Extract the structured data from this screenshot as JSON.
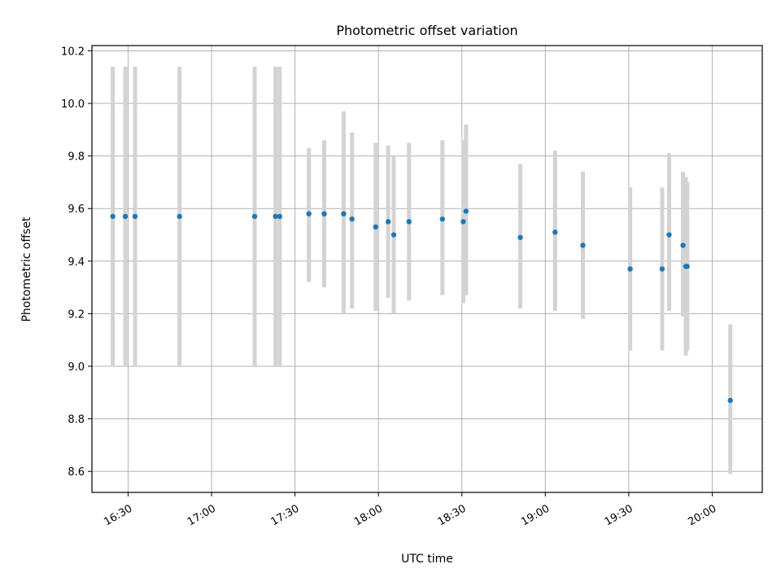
{
  "chart_data": {
    "type": "scatter",
    "title": "Photometric offset variation",
    "xlabel": "UTC time",
    "ylabel": "Photometric offset",
    "xlim": [
      "16:17",
      "20:18"
    ],
    "ylim": [
      8.52,
      10.22
    ],
    "x_ticks": [
      "16:30",
      "17:00",
      "17:30",
      "18:00",
      "18:30",
      "19:00",
      "19:30",
      "20:00"
    ],
    "y_ticks": [
      8.6,
      8.8,
      9.0,
      9.2,
      9.4,
      9.6,
      9.8,
      10.0,
      10.2
    ],
    "y_tick_labels": [
      "8.6",
      "8.8",
      "9.0",
      "9.2",
      "9.4",
      "9.6",
      "9.8",
      "10.0",
      "10.2"
    ],
    "grid": true,
    "colors": {
      "point": "#1f77b4",
      "errorbar": "#d3d3d3",
      "grid": "#b0b0b0"
    },
    "points": [
      {
        "time": "16:24:30",
        "y": 9.57,
        "err_low": 9.0,
        "err_high": 10.14
      },
      {
        "time": "16:29:00",
        "y": 9.57,
        "err_low": 9.0,
        "err_high": 10.14
      },
      {
        "time": "16:32:30",
        "y": 9.57,
        "err_low": 9.0,
        "err_high": 10.14
      },
      {
        "time": "16:48:30",
        "y": 9.57,
        "err_low": 9.0,
        "err_high": 10.14
      },
      {
        "time": "17:15:30",
        "y": 9.57,
        "err_low": 9.0,
        "err_high": 10.14
      },
      {
        "time": "17:23:00",
        "y": 9.57,
        "err_low": 9.0,
        "err_high": 10.14
      },
      {
        "time": "17:24:30",
        "y": 9.57,
        "err_low": 9.0,
        "err_high": 10.14
      },
      {
        "time": "17:35:00",
        "y": 9.58,
        "err_low": 9.32,
        "err_high": 9.83
      },
      {
        "time": "17:40:30",
        "y": 9.58,
        "err_low": 9.3,
        "err_high": 9.86
      },
      {
        "time": "17:47:30",
        "y": 9.58,
        "err_low": 9.2,
        "err_high": 9.97
      },
      {
        "time": "17:50:30",
        "y": 9.56,
        "err_low": 9.22,
        "err_high": 9.89
      },
      {
        "time": "17:59:00",
        "y": 9.53,
        "err_low": 9.21,
        "err_high": 9.85
      },
      {
        "time": "18:03:30",
        "y": 9.55,
        "err_low": 9.26,
        "err_high": 9.84
      },
      {
        "time": "18:05:30",
        "y": 9.5,
        "err_low": 9.2,
        "err_high": 9.8
      },
      {
        "time": "18:11:00",
        "y": 9.55,
        "err_low": 9.25,
        "err_high": 9.85
      },
      {
        "time": "18:23:00",
        "y": 9.56,
        "err_low": 9.27,
        "err_high": 9.86
      },
      {
        "time": "18:30:30",
        "y": 9.55,
        "err_low": 9.24,
        "err_high": 9.86
      },
      {
        "time": "18:31:30",
        "y": 9.59,
        "err_low": 9.27,
        "err_high": 9.92
      },
      {
        "time": "18:51:00",
        "y": 9.49,
        "err_low": 9.22,
        "err_high": 9.77
      },
      {
        "time": "19:03:30",
        "y": 9.51,
        "err_low": 9.21,
        "err_high": 9.82
      },
      {
        "time": "19:13:30",
        "y": 9.46,
        "err_low": 9.18,
        "err_high": 9.74
      },
      {
        "time": "19:30:30",
        "y": 9.37,
        "err_low": 9.06,
        "err_high": 9.68
      },
      {
        "time": "19:42:00",
        "y": 9.37,
        "err_low": 9.06,
        "err_high": 9.68
      },
      {
        "time": "19:44:30",
        "y": 9.5,
        "err_low": 9.21,
        "err_high": 9.81
      },
      {
        "time": "19:49:30",
        "y": 9.46,
        "err_low": 9.19,
        "err_high": 9.74
      },
      {
        "time": "19:50:30",
        "y": 9.38,
        "err_low": 9.04,
        "err_high": 9.72
      },
      {
        "time": "19:51:00",
        "y": 9.38,
        "err_low": 9.06,
        "err_high": 9.7
      },
      {
        "time": "20:06:30",
        "y": 8.87,
        "err_low": 8.59,
        "err_high": 9.16
      }
    ]
  }
}
